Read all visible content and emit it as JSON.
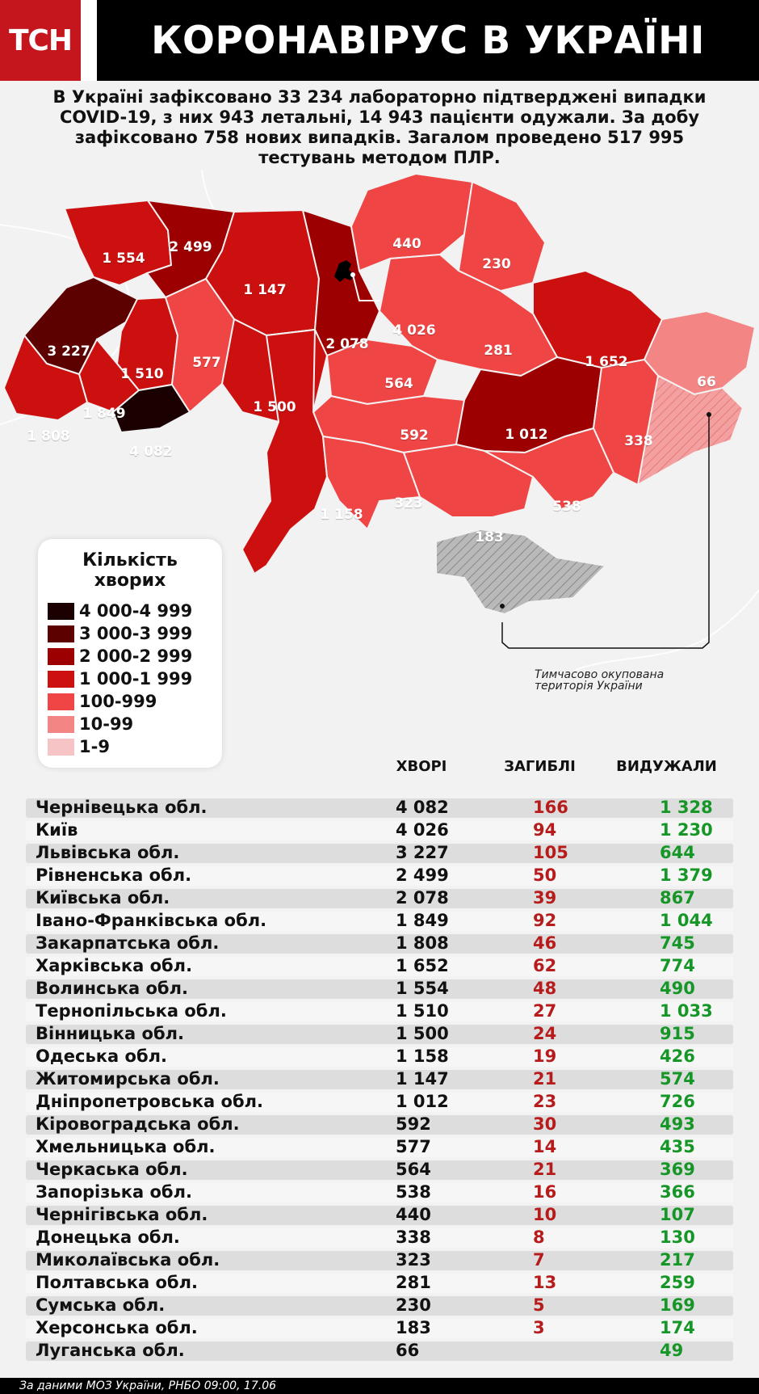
{
  "header": {
    "logo": "ТСН",
    "title": "КОРОНАВІРУС В УКРАЇНІ"
  },
  "intro": {
    "text": "В Україні зафіксовано 33 234 лабораторно підтверджені випадки COVID-19, з них 943 летальні, 14 943 пацієнти одужали. За добу зафіксовано 758 нових випадків. Загалом проведено 517 995 тестувань методом ПЛР."
  },
  "map": {
    "occupied_note_line_1": "Тимчасово окупована",
    "occupied_note_line_2": "територія України",
    "labels": {
      "volynska": "1 554",
      "rivnenska": "2 499",
      "zhytomyrska": "1 147",
      "lvivska": "3 227",
      "ternopilska": "1 510",
      "khmelnytska": "577",
      "kyivska": "2 078",
      "kyiv": "4 026",
      "chernihivska": "440",
      "sumska": "230",
      "kharkivska": "1 652",
      "luhanska": "66",
      "ivano_frankivska": "1 849",
      "zakarpatska": "1 808",
      "chernivetska": "4 082",
      "vinnytska": "1 500",
      "cherkaska": "564",
      "poltavska": "281",
      "kirovohradska": "592",
      "dnipropetrovska": "1 012",
      "donetska": "338",
      "odeska": "1 158",
      "mykolaivska": "323",
      "khersonska": "183",
      "zaporizka": "538"
    }
  },
  "legend": {
    "title_line_1": "Кількість",
    "title_line_2": "хворих",
    "items": [
      {
        "label": "4 000-4 999",
        "color": "#1a0000"
      },
      {
        "label": "3 000-3 999",
        "color": "#5c0000"
      },
      {
        "label": "2 000-2 999",
        "color": "#9d0000"
      },
      {
        "label": "1 000-1 999",
        "color": "#cc1010"
      },
      {
        "label": "100-999",
        "color": "#f04545"
      },
      {
        "label": "10-99",
        "color": "#f48585"
      },
      {
        "label": "1-9",
        "color": "#f7c4c6"
      }
    ]
  },
  "table": {
    "headers": [
      "ХВОРІ",
      "ЗАГИБЛІ",
      "ВИДУЖАЛИ"
    ],
    "rows": [
      {
        "region": "Чернівецька обл.",
        "sick": "4 082",
        "dead": "166",
        "recovered": "1 328"
      },
      {
        "region": "Київ",
        "sick": "4 026",
        "dead": "94",
        "recovered": "1 230"
      },
      {
        "region": "Львівська обл.",
        "sick": "3 227",
        "dead": "105",
        "recovered": "644"
      },
      {
        "region": "Рівненська обл.",
        "sick": "2 499",
        "dead": "50",
        "recovered": "1 379"
      },
      {
        "region": "Київська обл.",
        "sick": "2 078",
        "dead": "39",
        "recovered": "867"
      },
      {
        "region": "Івано-Франківська обл.",
        "sick": "1 849",
        "dead": "92",
        "recovered": "1 044"
      },
      {
        "region": "Закарпатська обл.",
        "sick": "1 808",
        "dead": "46",
        "recovered": "745"
      },
      {
        "region": "Харківська обл.",
        "sick": "1 652",
        "dead": "62",
        "recovered": "774"
      },
      {
        "region": "Волинська обл.",
        "sick": "1 554",
        "dead": "48",
        "recovered": "490"
      },
      {
        "region": "Тернопільська обл.",
        "sick": "1 510",
        "dead": "27",
        "recovered": "1 033"
      },
      {
        "region": "Вінницька обл.",
        "sick": "1 500",
        "dead": "24",
        "recovered": "915"
      },
      {
        "region": "Одеська обл.",
        "sick": "1 158",
        "dead": "19",
        "recovered": "426"
      },
      {
        "region": "Житомирська обл.",
        "sick": "1 147",
        "dead": "21",
        "recovered": "574"
      },
      {
        "region": "Дніпропетровська обл.",
        "sick": "1 012",
        "dead": "23",
        "recovered": "726"
      },
      {
        "region": "Кіровоградська обл.",
        "sick": "592",
        "dead": "30",
        "recovered": "493"
      },
      {
        "region": "Хмельницька обл.",
        "sick": "577",
        "dead": "14",
        "recovered": "435"
      },
      {
        "region": "Черкаська обл.",
        "sick": "564",
        "dead": "21",
        "recovered": "369"
      },
      {
        "region": "Запорізька обл.",
        "sick": "538",
        "dead": "16",
        "recovered": "366"
      },
      {
        "region": "Чернігівська обл.",
        "sick": "440",
        "dead": "10",
        "recovered": "107"
      },
      {
        "region": "Донецька обл.",
        "sick": "338",
        "dead": "8",
        "recovered": "130"
      },
      {
        "region": "Миколаївська обл.",
        "sick": "323",
        "dead": "7",
        "recovered": "217"
      },
      {
        "region": "Полтавська обл.",
        "sick": "281",
        "dead": "13",
        "recovered": "259"
      },
      {
        "region": "Сумська обл.",
        "sick": "230",
        "dead": "5",
        "recovered": "169"
      },
      {
        "region": "Херсонська обл.",
        "sick": "183",
        "dead": "3",
        "recovered": "174"
      },
      {
        "region": "Луганська обл.",
        "sick": "66",
        "dead": "",
        "recovered": "49"
      }
    ]
  },
  "footer": {
    "source": "За даними МОЗ України, РНБО  09:00, 17.06"
  },
  "colors": {
    "brand_red": "#c4161c",
    "dead_red": "#b71c1c",
    "recovered_green": "#159626",
    "occupied_gray": "#a8a8a8"
  }
}
